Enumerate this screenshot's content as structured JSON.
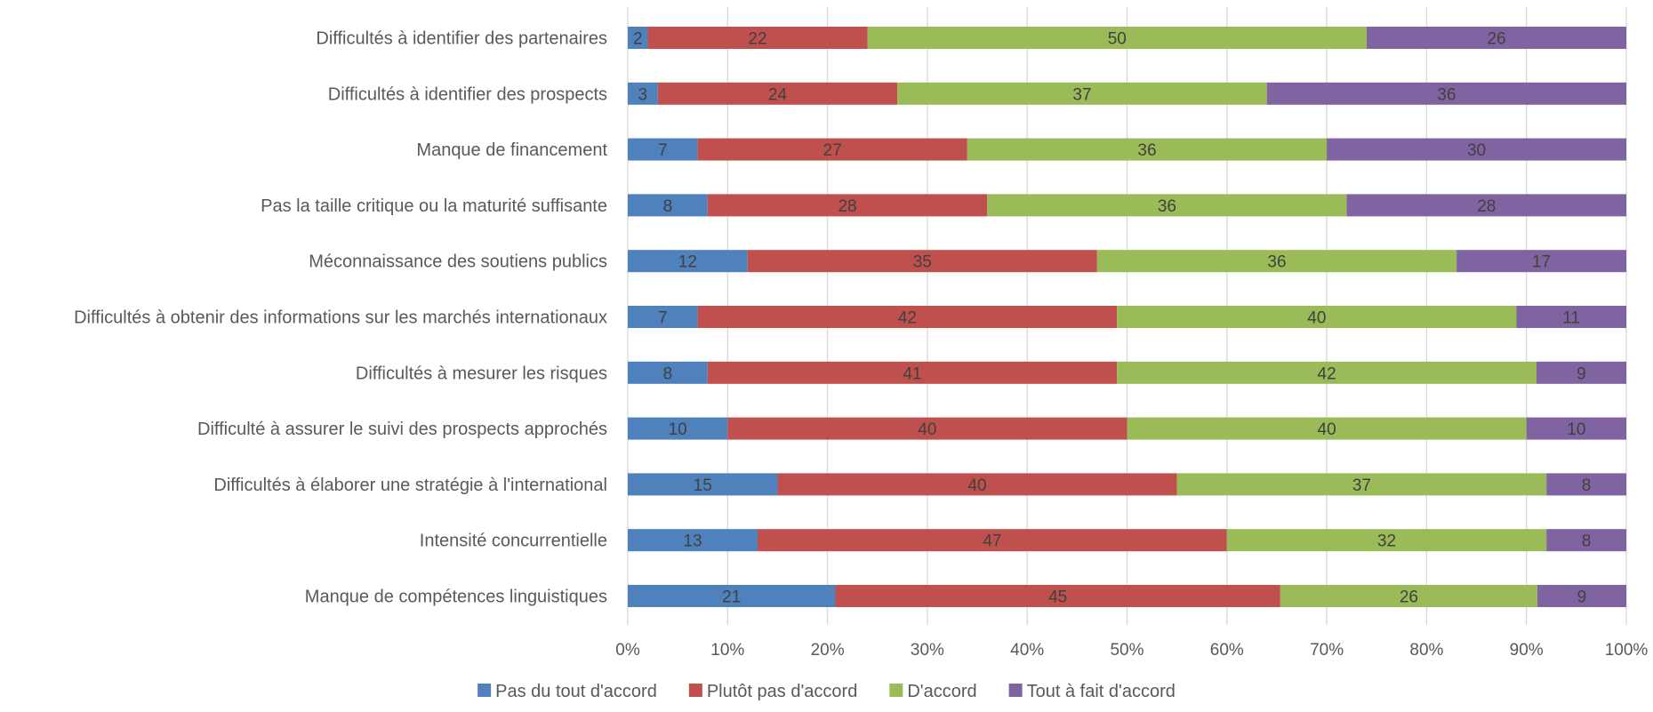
{
  "chart_data": {
    "type": "bar",
    "orientation": "horizontal",
    "stacked": "percent",
    "title": "",
    "xlabel": "",
    "ylabel": "",
    "xlim": [
      0,
      100
    ],
    "x_ticks": [
      "0%",
      "10%",
      "20%",
      "30%",
      "40%",
      "50%",
      "60%",
      "70%",
      "80%",
      "90%",
      "100%"
    ],
    "grid": "vertical",
    "legend_position": "bottom",
    "categories": [
      "Difficultés à identifier des partenaires",
      "Difficultés à identifier des prospects",
      "Manque de financement",
      "Pas la taille critique ou la maturité suffisante",
      "Méconnaissance des soutiens publics",
      "Difficultés à obtenir des informations sur les marchés internationaux",
      "Difficultés à mesurer les risques",
      "Difficulté à assurer le suivi des prospects approchés",
      "Difficultés à élaborer une stratégie à l'international",
      "Intensité concurrentielle",
      "Manque de compétences linguistiques"
    ],
    "series": [
      {
        "name": "Pas du tout d'accord",
        "color": "#4F81BD",
        "values": [
          2,
          3,
          7,
          8,
          12,
          7,
          8,
          10,
          15,
          13,
          21
        ]
      },
      {
        "name": "Plutôt pas d'accord",
        "color": "#C0504D",
        "values": [
          22,
          24,
          27,
          28,
          35,
          42,
          41,
          40,
          40,
          47,
          45
        ]
      },
      {
        "name": "D'accord",
        "color": "#9BBB59",
        "values": [
          50,
          37,
          36,
          36,
          36,
          40,
          42,
          40,
          37,
          32,
          26
        ]
      },
      {
        "name": "Tout à fait d'accord",
        "color": "#8064A2",
        "values": [
          26,
          36,
          30,
          28,
          17,
          11,
          9,
          10,
          8,
          8,
          9
        ]
      }
    ]
  }
}
